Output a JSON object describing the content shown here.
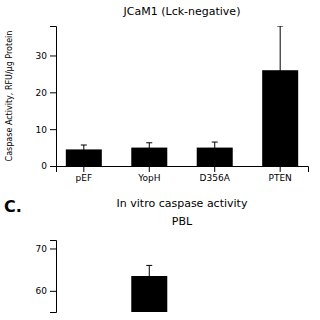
{
  "chart_data": [
    {
      "type": "bar",
      "title": "JCaM1 (Lck-negative)",
      "categories": [
        "pEF",
        "YopH",
        "D356A",
        "PTEN"
      ],
      "values": [
        4.5,
        5.0,
        5.0,
        26.0
      ],
      "errors": [
        1.2,
        1.3,
        1.5,
        12.0
      ],
      "y_label": "Caspase Activity, RFU/μg Protein",
      "ylim": [
        0,
        38
      ],
      "yticks": [
        0,
        10,
        20,
        30
      ],
      "color": "#000000"
    },
    {
      "type": "bar",
      "title": "In vitro caspase activity",
      "subtitle": "PBL",
      "annotations": [
        "C."
      ],
      "categories": [
        null,
        null,
        null,
        null
      ],
      "values": [
        null,
        63.5,
        null,
        null
      ],
      "errors": [
        null,
        2.5,
        null,
        null
      ],
      "ylim": [
        55,
        72
      ],
      "yticks": [
        60,
        70
      ],
      "color": "#000000",
      "tick_labels": "y"
    }
  ]
}
